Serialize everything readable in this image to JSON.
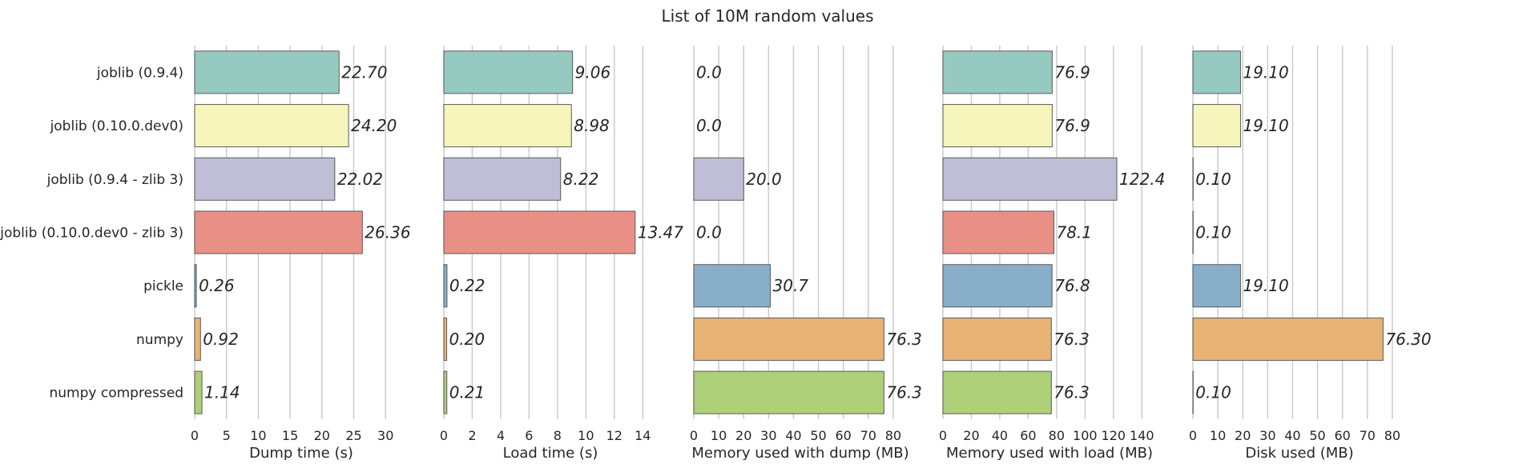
{
  "chart_data": {
    "type": "bar",
    "orientation": "horizontal",
    "title": "List of 10M random values",
    "categories": [
      "joblib (0.9.4)",
      "joblib (0.10.0.dev0)",
      "joblib (0.9.4 - zlib 3)",
      "joblib (0.10.0.dev0 - zlib 3)",
      "pickle",
      "numpy",
      "numpy compressed"
    ],
    "colors": [
      "#96cac0",
      "#f6f6bc",
      "#c0bed6",
      "#e98f86",
      "#89aeca",
      "#e8b374",
      "#aed079"
    ],
    "grid": true,
    "panels": [
      {
        "xlabel": "Dump time (s)",
        "xlim": [
          0,
          33.5
        ],
        "ticks": [
          0,
          5,
          10,
          15,
          20,
          25,
          30
        ],
        "tick_labels": [
          "0",
          "5",
          "10",
          "15",
          "20",
          "25",
          "30"
        ],
        "values": [
          22.7,
          24.2,
          22.02,
          26.36,
          0.26,
          0.92,
          1.14
        ],
        "value_labels": [
          "22.70",
          "24.20",
          "22.02",
          "26.36",
          "0.26",
          "0.92",
          "1.14"
        ]
      },
      {
        "xlabel": "Load time (s)",
        "xlim": [
          0,
          15.0
        ],
        "ticks": [
          0,
          2,
          4,
          6,
          8,
          10,
          12,
          14
        ],
        "tick_labels": [
          "0",
          "2",
          "4",
          "6",
          "8",
          "10",
          "12",
          "14"
        ],
        "values": [
          9.06,
          8.98,
          8.22,
          13.47,
          0.22,
          0.2,
          0.21
        ],
        "value_labels": [
          "9.06",
          "8.98",
          "8.22",
          "13.47",
          "0.22",
          "0.20",
          "0.21"
        ]
      },
      {
        "xlabel": "Memory used with dump (MB)",
        "xlim": [
          0,
          85.5
        ],
        "ticks": [
          0,
          10,
          20,
          30,
          40,
          50,
          60,
          70,
          80
        ],
        "tick_labels": [
          "0",
          "10",
          "20",
          "30",
          "40",
          "50",
          "60",
          "70",
          "80"
        ],
        "values": [
          0.0,
          0.0,
          20.0,
          0.0,
          30.7,
          76.3,
          76.3
        ],
        "value_labels": [
          "0.0",
          "0.0",
          "20.0",
          "0.0",
          "30.7",
          "76.3",
          "76.3"
        ]
      },
      {
        "xlabel": "Memory used with load (MB)",
        "xlim": [
          0,
          150
        ],
        "ticks": [
          0,
          20,
          40,
          60,
          80,
          100,
          120,
          140
        ],
        "tick_labels": [
          "0",
          "20",
          "40",
          "60",
          "80",
          "100",
          "120",
          "140"
        ],
        "values": [
          76.9,
          76.9,
          122.4,
          78.1,
          76.8,
          76.3,
          76.3
        ],
        "value_labels": [
          "76.9",
          "76.9",
          "122.4",
          "78.1",
          "76.8",
          "76.3",
          "76.3"
        ]
      },
      {
        "xlabel": "Disk used (MB)",
        "xlim": [
          0,
          85.5
        ],
        "ticks": [
          0,
          10,
          20,
          30,
          40,
          50,
          60,
          70,
          80
        ],
        "tick_labels": [
          "0",
          "10",
          "20",
          "30",
          "40",
          "50",
          "60",
          "70",
          "80"
        ],
        "values": [
          19.1,
          19.1,
          0.1,
          0.1,
          19.1,
          76.3,
          0.1
        ],
        "value_labels": [
          "19.10",
          "19.10",
          "0.10",
          "0.10",
          "19.10",
          "76.30",
          "0.10"
        ]
      }
    ]
  }
}
